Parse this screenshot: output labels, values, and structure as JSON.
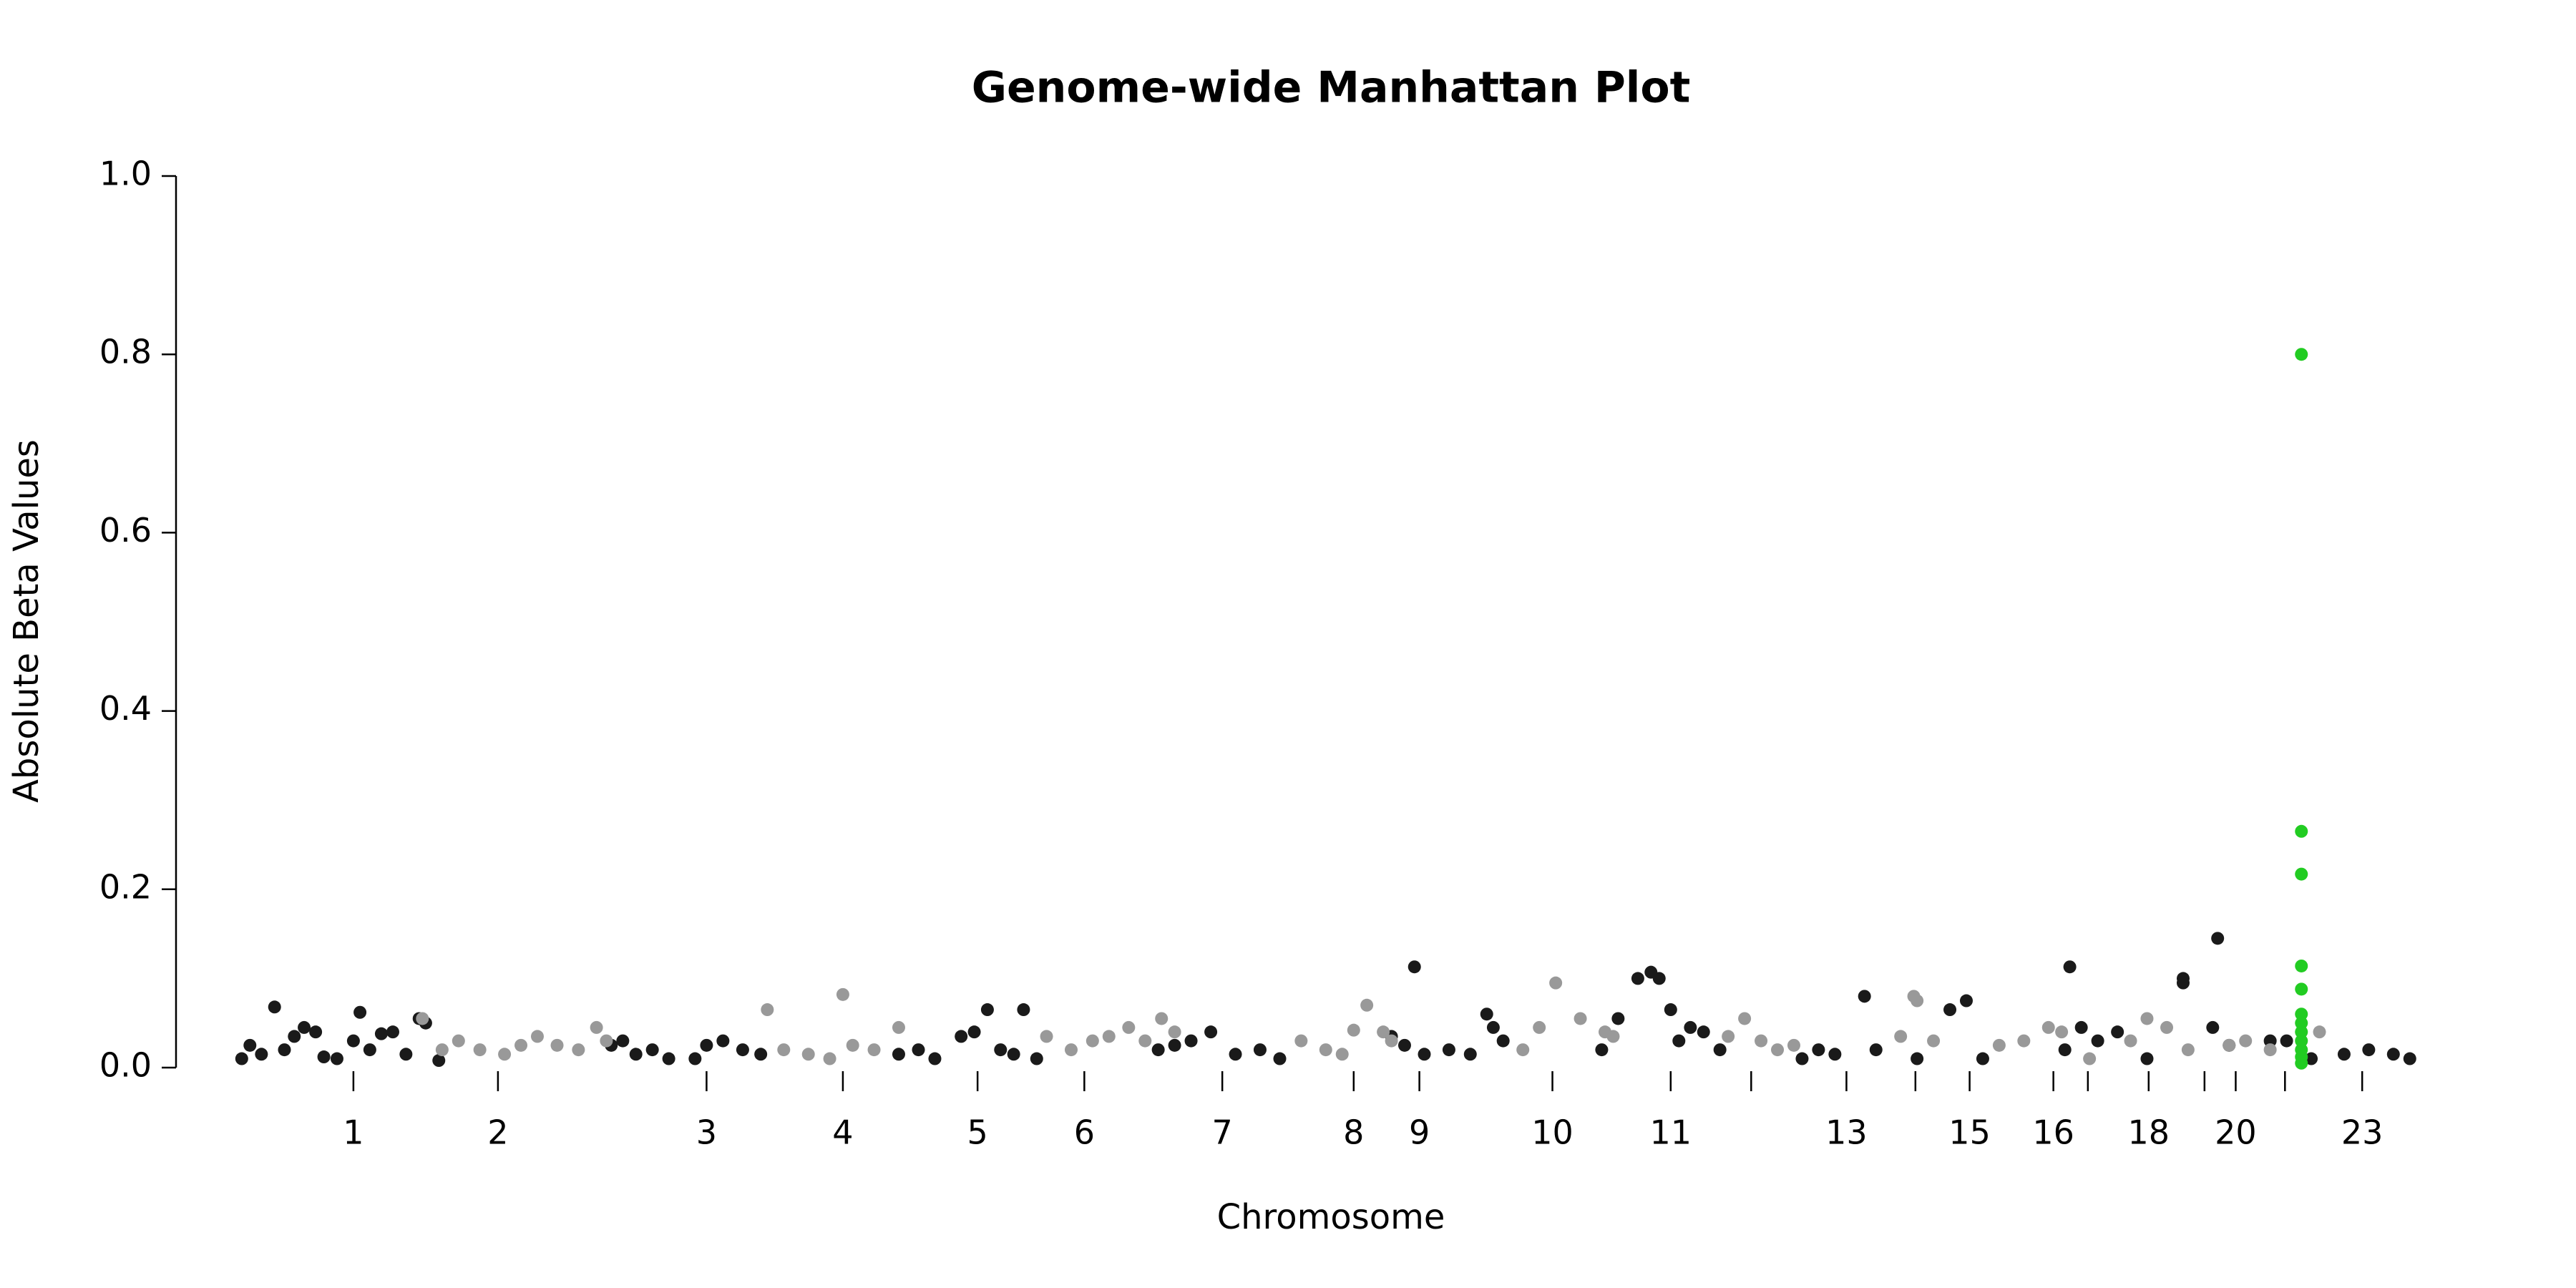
{
  "chart_data": {
    "type": "scatter",
    "title": "Genome-wide Manhattan Plot",
    "x_label": "Chromosome",
    "y_label": "Absolute Beta Values",
    "xlim": [
      0,
      1371
    ],
    "ylim": [
      0,
      1
    ],
    "yticks": [
      {
        "value": 0,
        "label": "0.0"
      },
      0.2,
      0.4,
      0.6,
      0.8,
      {
        "value": 1,
        "label": "1.0"
      }
    ],
    "xticks": [
      {
        "value": 108,
        "label": "1"
      },
      {
        "value": 196,
        "label": "2"
      },
      {
        "value": 323,
        "label": "3"
      },
      {
        "value": 406,
        "label": "4"
      },
      {
        "value": 488,
        "label": "5"
      },
      {
        "value": 553,
        "label": "6"
      },
      {
        "value": 637,
        "label": "7"
      },
      {
        "value": 717,
        "label": "8"
      },
      {
        "value": 757,
        "label": "9"
      },
      {
        "value": 838,
        "label": "10"
      },
      {
        "value": 910,
        "label": "11"
      },
      {
        "value": 959,
        "label": null
      },
      {
        "value": 1017,
        "label": "13"
      },
      {
        "value": 1059,
        "label": null
      },
      {
        "value": 1092,
        "label": "15"
      },
      {
        "value": 1143,
        "label": "16"
      },
      {
        "value": 1164,
        "label": null
      },
      {
        "value": 1201,
        "label": "18"
      },
      {
        "value": 1235,
        "label": null
      },
      {
        "value": 1254,
        "label": "20"
      },
      {
        "value": 1284,
        "label": null
      },
      {
        "value": 1331,
        "label": "23"
      }
    ],
    "series": [
      {
        "color": "#1a1a1a",
        "x": [
          40,
          45,
          52,
          60,
          66,
          72,
          78,
          85,
          90,
          98,
          108,
          112,
          118,
          125,
          132,
          140,
          148,
          152,
          160,
          265,
          272,
          280,
          290,
          300,
          316,
          323,
          333,
          345,
          356,
          440,
          452,
          462,
          478,
          486,
          494,
          502,
          510,
          516,
          524,
          598,
          608,
          618,
          630,
          645,
          660,
          672,
          740,
          748,
          754,
          760,
          775,
          788,
          798,
          802,
          808,
          868,
          878,
          890,
          898,
          903,
          910,
          915,
          922,
          930,
          940,
          990,
          1000,
          1010,
          1028,
          1035,
          1060,
          1080,
          1090,
          1100,
          1150,
          1153,
          1160,
          1170,
          1182,
          1200,
          1222,
          1222,
          1240,
          1243,
          1250,
          1275,
          1285,
          1300,
          1320,
          1335,
          1350,
          1360
        ],
        "values": [
          0.01,
          0.025,
          0.015,
          0.068,
          0.02,
          0.035,
          0.045,
          0.04,
          0.012,
          0.01,
          0.03,
          0.062,
          0.02,
          0.038,
          0.04,
          0.015,
          0.055,
          0.05,
          0.008,
          0.025,
          0.03,
          0.015,
          0.02,
          0.01,
          0.01,
          0.025,
          0.03,
          0.02,
          0.015,
          0.015,
          0.02,
          0.01,
          0.035,
          0.04,
          0.065,
          0.02,
          0.015,
          0.065,
          0.01,
          0.02,
          0.025,
          0.03,
          0.04,
          0.015,
          0.02,
          0.01,
          0.035,
          0.025,
          0.113,
          0.015,
          0.02,
          0.015,
          0.06,
          0.045,
          0.03,
          0.02,
          0.055,
          0.1,
          0.107,
          0.1,
          0.065,
          0.03,
          0.045,
          0.04,
          0.02,
          0.01,
          0.02,
          0.015,
          0.08,
          0.02,
          0.01,
          0.065,
          0.075,
          0.01,
          0.02,
          0.113,
          0.045,
          0.03,
          0.04,
          0.01,
          0.1,
          0.095,
          0.045,
          0.145,
          0.025,
          0.03,
          0.03,
          0.01,
          0.015,
          0.02,
          0.015,
          0.01
        ]
      },
      {
        "color": "#999999",
        "x": [
          150,
          162,
          172,
          185,
          200,
          210,
          220,
          232,
          245,
          256,
          262,
          360,
          370,
          385,
          398,
          406,
          412,
          425,
          440,
          530,
          545,
          558,
          568,
          580,
          590,
          600,
          608,
          685,
          700,
          710,
          717,
          725,
          735,
          740,
          820,
          830,
          840,
          855,
          870,
          875,
          945,
          955,
          965,
          975,
          985,
          1050,
          1058,
          1060,
          1070,
          1110,
          1125,
          1140,
          1148,
          1165,
          1190,
          1200,
          1212,
          1225,
          1250,
          1260,
          1275,
          1305
        ],
        "values": [
          0.055,
          0.02,
          0.03,
          0.02,
          0.015,
          0.025,
          0.035,
          0.025,
          0.02,
          0.045,
          0.03,
          0.065,
          0.02,
          0.015,
          0.01,
          0.082,
          0.025,
          0.02,
          0.045,
          0.035,
          0.02,
          0.03,
          0.035,
          0.045,
          0.03,
          0.055,
          0.04,
          0.03,
          0.02,
          0.015,
          0.042,
          0.07,
          0.04,
          0.03,
          0.02,
          0.045,
          0.095,
          0.055,
          0.04,
          0.035,
          0.035,
          0.055,
          0.03,
          0.02,
          0.025,
          0.035,
          0.08,
          0.075,
          0.03,
          0.025,
          0.03,
          0.045,
          0.04,
          0.01,
          0.03,
          0.055,
          0.045,
          0.02,
          0.025,
          0.03,
          0.02,
          0.04
        ]
      },
      {
        "color": "#22cc22",
        "x": [
          1294,
          1294,
          1294,
          1294,
          1294,
          1294,
          1294,
          1294,
          1294,
          1294,
          1294,
          1294
        ],
        "values": [
          0.8,
          0.265,
          0.217,
          0.114,
          0.088,
          0.06,
          0.05,
          0.04,
          0.03,
          0.02,
          0.012,
          0.005
        ]
      }
    ]
  }
}
